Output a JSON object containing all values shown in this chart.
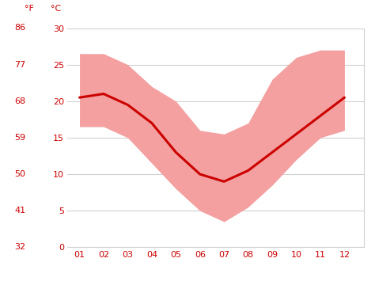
{
  "months": [
    1,
    2,
    3,
    4,
    5,
    6,
    7,
    8,
    9,
    10,
    11,
    12
  ],
  "month_labels": [
    "01",
    "02",
    "03",
    "04",
    "05",
    "06",
    "07",
    "08",
    "09",
    "10",
    "11",
    "12"
  ],
  "avg_temp_c": [
    20.5,
    21.0,
    19.5,
    17.0,
    13.0,
    10.0,
    9.0,
    10.5,
    13.0,
    15.5,
    18.0,
    20.5
  ],
  "max_temp_c": [
    26.5,
    26.5,
    25.0,
    22.0,
    20.0,
    16.0,
    15.5,
    17.0,
    23.0,
    26.0,
    27.0,
    27.0
  ],
  "min_temp_c": [
    16.5,
    16.5,
    15.0,
    11.5,
    8.0,
    5.0,
    3.5,
    5.5,
    8.5,
    12.0,
    15.0,
    16.0
  ],
  "yticks_c": [
    0,
    5,
    10,
    15,
    20,
    25,
    30
  ],
  "yticks_f": [
    32,
    41,
    50,
    59,
    68,
    77,
    86
  ],
  "ylim_c": [
    0,
    30
  ],
  "xlim": [
    0.5,
    12.8
  ],
  "line_color": "#cc0000",
  "fill_color": "#f4a0a0",
  "background_color": "#ffffff",
  "grid_color": "#d0d0d0",
  "tick_color": "#cc0000",
  "label_f": "°F",
  "label_c": "°C",
  "tick_fontsize": 8,
  "label_fontsize": 8
}
